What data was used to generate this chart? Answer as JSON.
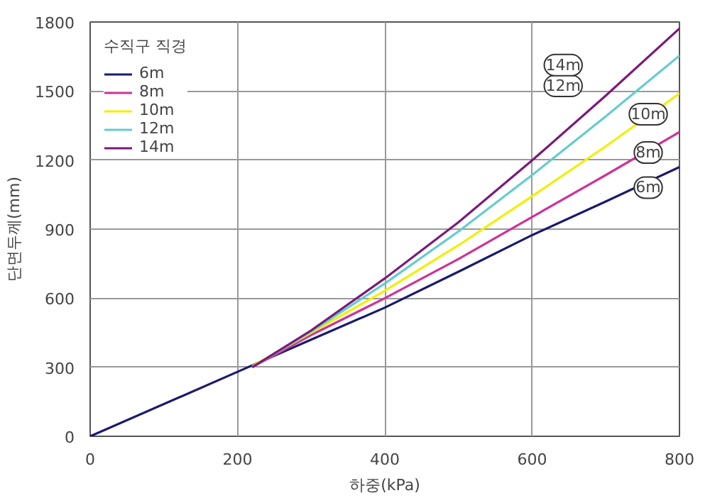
{
  "chart_data": {
    "type": "line",
    "xlabel": "하중(kPa)",
    "ylabel": "단면두께(mm)",
    "legend_title": "수직구 직경",
    "legend": "top left",
    "grid": true,
    "line_style": "solid",
    "xlim": [
      0,
      800
    ],
    "ylim": [
      0,
      1800
    ],
    "xticks": [
      0,
      200,
      400,
      600,
      800
    ],
    "yticks": [
      0,
      300,
      600,
      900,
      1200,
      1500,
      1800
    ],
    "series": [
      {
        "name": "6m",
        "color": "#1a1a6e",
        "x": [
          0,
          200,
          300,
          400,
          500,
          600,
          700,
          800
        ],
        "values": [
          0,
          280,
          420,
          559,
          715,
          874,
          1020,
          1170
        ]
      },
      {
        "name": "8m",
        "color": "#cc3399",
        "x": [
          220,
          300,
          400,
          500,
          600,
          700,
          800
        ],
        "values": [
          300,
          440,
          600,
          770,
          953,
          1135,
          1322
        ]
      },
      {
        "name": "10m",
        "color": "#f0f000",
        "x": [
          220,
          300,
          400,
          500,
          600,
          700,
          800
        ],
        "values": [
          305,
          450,
          632,
          830,
          1043,
          1260,
          1489
        ]
      },
      {
        "name": "12m",
        "color": "#66cccc",
        "x": [
          220,
          300,
          400,
          500,
          600,
          700,
          800
        ],
        "values": [
          300,
          455,
          664,
          890,
          1135,
          1390,
          1654
        ]
      },
      {
        "name": "14m",
        "color": "#7a1a7a",
        "x": [
          220,
          300,
          400,
          500,
          600,
          700,
          800
        ],
        "values": [
          300,
          460,
          686,
          930,
          1199,
          1480,
          1772
        ]
      }
    ]
  }
}
